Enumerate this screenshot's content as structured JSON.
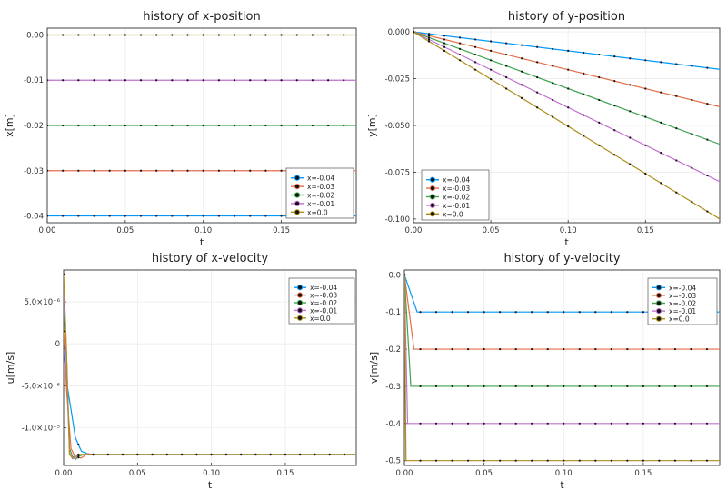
{
  "series_names": [
    "x=-0.04",
    "x=-0.03",
    "x=-0.02",
    "x=-0.01",
    "x=0.0"
  ],
  "series_colors": [
    "#009AFA",
    "#E36F47",
    "#3EA44E",
    "#C371D2",
    "#AC8E18"
  ],
  "chart_data": [
    {
      "type": "line",
      "title": "history of x-position",
      "xlabel": "t",
      "ylabel": "x[m]",
      "xlim": [
        0,
        0.198
      ],
      "ylim": [
        -0.0415,
        0.0015
      ],
      "xticks": [
        {
          "v": 0.0,
          "label": "0.00"
        },
        {
          "v": 0.05,
          "label": "0.05"
        },
        {
          "v": 0.1,
          "label": "0.10"
        },
        {
          "v": 0.15,
          "label": "0.15"
        }
      ],
      "yticks": [
        {
          "v": 0.0,
          "label": "0.00"
        },
        {
          "v": -0.01,
          "label": "-0.01"
        },
        {
          "v": -0.02,
          "label": "-0.02"
        },
        {
          "v": -0.03,
          "label": "-0.03"
        },
        {
          "v": -0.04,
          "label": "-0.04"
        }
      ],
      "grid": true,
      "legend_position": "bottom-right",
      "series": [
        {
          "name": "x=-0.04",
          "x": [
            0,
            0.198
          ],
          "y": [
            -0.04,
            -0.04
          ]
        },
        {
          "name": "x=-0.03",
          "x": [
            0,
            0.198
          ],
          "y": [
            -0.03,
            -0.03
          ]
        },
        {
          "name": "x=-0.02",
          "x": [
            0,
            0.198
          ],
          "y": [
            -0.02,
            -0.02
          ]
        },
        {
          "name": "x=-0.01",
          "x": [
            0,
            0.198
          ],
          "y": [
            -0.01,
            -0.01
          ]
        },
        {
          "name": "x=0.0",
          "x": [
            0,
            0.198
          ],
          "y": [
            0.0,
            0.0
          ]
        }
      ]
    },
    {
      "type": "line",
      "title": "history of y-position",
      "xlabel": "t",
      "ylabel": "y[m]",
      "xlim": [
        0,
        0.198
      ],
      "ylim": [
        -0.102,
        0.002
      ],
      "xticks": [
        {
          "v": 0.0,
          "label": "0.00"
        },
        {
          "v": 0.05,
          "label": "0.05"
        },
        {
          "v": 0.1,
          "label": "0.10"
        },
        {
          "v": 0.15,
          "label": "0.15"
        }
      ],
      "yticks": [
        {
          "v": 0.0,
          "label": "0.000"
        },
        {
          "v": -0.025,
          "label": "-0.025"
        },
        {
          "v": -0.05,
          "label": "-0.050"
        },
        {
          "v": -0.075,
          "label": "-0.075"
        },
        {
          "v": -0.1,
          "label": "-0.100"
        }
      ],
      "grid": true,
      "legend_position": "bottom-left",
      "series": [
        {
          "name": "x=-0.04",
          "x": [
            0,
            0.198
          ],
          "y": [
            0,
            -0.02
          ]
        },
        {
          "name": "x=-0.03",
          "x": [
            0,
            0.198
          ],
          "y": [
            0,
            -0.04
          ]
        },
        {
          "name": "x=-0.02",
          "x": [
            0,
            0.198
          ],
          "y": [
            0,
            -0.06
          ]
        },
        {
          "name": "x=-0.01",
          "x": [
            0,
            0.198
          ],
          "y": [
            0,
            -0.08
          ]
        },
        {
          "name": "x=0.0",
          "x": [
            0,
            0.198
          ],
          "y": [
            0,
            -0.1
          ]
        }
      ]
    },
    {
      "type": "line",
      "title": "history of x-velocity",
      "xlabel": "t",
      "ylabel": "u[m/s]",
      "xlim": [
        0,
        0.198
      ],
      "ylim": [
        -1.45e-05,
        8.8e-06
      ],
      "xticks": [
        {
          "v": 0.0,
          "label": "0.00"
        },
        {
          "v": 0.05,
          "label": "0.05"
        },
        {
          "v": 0.1,
          "label": "0.10"
        },
        {
          "v": 0.15,
          "label": "0.15"
        }
      ],
      "yticks": [
        {
          "v": 5e-06,
          "label": "5.0×10⁻⁶"
        },
        {
          "v": 0,
          "label": "0"
        },
        {
          "v": -5e-06,
          "label": "-5.0×10⁻⁶"
        },
        {
          "v": -1e-05,
          "label": "-1.0×10⁻⁵"
        }
      ],
      "grid": true,
      "legend_position": "top-right",
      "series": [
        {
          "name": "x=-0.04",
          "x": [
            0,
            0.002,
            0.008,
            0.012,
            0.016,
            0.02,
            0.198
          ],
          "y": [
            -5e-07,
            -4.5e-06,
            -1.12e-05,
            -1.28e-05,
            -1.31e-05,
            -1.32e-05,
            -1.32e-05
          ]
        },
        {
          "name": "x=-0.03",
          "x": [
            0,
            0.002,
            0.005,
            0.008,
            0.012,
            0.016,
            0.02,
            0.198
          ],
          "y": [
            1.5e-06,
            -5.5e-06,
            -1.25e-05,
            -1.35e-05,
            -1.36e-05,
            -1.31e-05,
            -1.32e-05,
            -1.32e-05
          ]
        },
        {
          "name": "x=-0.02",
          "x": [
            0,
            0.002,
            0.004,
            0.006,
            0.008,
            0.01,
            0.014,
            0.198
          ],
          "y": [
            4.5e-06,
            -2e-06,
            -1.25e-05,
            -1.34e-05,
            -1.38e-05,
            -1.34e-05,
            -1.32e-05,
            -1.32e-05
          ]
        },
        {
          "name": "x=-0.01",
          "x": [
            0,
            0.002,
            0.004,
            0.006,
            0.008,
            0.01,
            0.198
          ],
          "y": [
            6.8e-06,
            -3e-06,
            -1.3e-05,
            -1.37e-05,
            -1.35e-05,
            -1.32e-05,
            -1.32e-05
          ]
        },
        {
          "name": "x=0.0",
          "x": [
            0,
            0.002,
            0.004,
            0.006,
            0.008,
            0.01,
            0.198
          ],
          "y": [
            8.3e-06,
            -1e-06,
            -1.32e-05,
            -1.36e-05,
            -1.33e-05,
            -1.32e-05,
            -1.32e-05
          ]
        }
      ]
    },
    {
      "type": "line",
      "title": "history of y-velocity",
      "xlabel": "t",
      "ylabel": "v[m/s]",
      "xlim": [
        0,
        0.198
      ],
      "ylim": [
        -0.513,
        0.013
      ],
      "xticks": [
        {
          "v": 0.0,
          "label": "0.00"
        },
        {
          "v": 0.05,
          "label": "0.05"
        },
        {
          "v": 0.1,
          "label": "0.10"
        },
        {
          "v": 0.15,
          "label": "0.15"
        }
      ],
      "yticks": [
        {
          "v": 0.0,
          "label": "0.0"
        },
        {
          "v": -0.1,
          "label": "-0.1"
        },
        {
          "v": -0.2,
          "label": "-0.2"
        },
        {
          "v": -0.3,
          "label": "-0.3"
        },
        {
          "v": -0.4,
          "label": "-0.4"
        },
        {
          "v": -0.5,
          "label": "-0.5"
        }
      ],
      "grid": true,
      "legend_position": "top-right",
      "series": [
        {
          "name": "x=-0.04",
          "x": [
            0,
            0.008,
            0.198
          ],
          "y": [
            0,
            -0.1,
            -0.1
          ]
        },
        {
          "name": "x=-0.03",
          "x": [
            0,
            0.006,
            0.198
          ],
          "y": [
            0,
            -0.2,
            -0.2
          ]
        },
        {
          "name": "x=-0.02",
          "x": [
            0,
            0.004,
            0.198
          ],
          "y": [
            0,
            -0.3,
            -0.3
          ]
        },
        {
          "name": "x=-0.01",
          "x": [
            0,
            0.002,
            0.198
          ],
          "y": [
            0,
            -0.4,
            -0.4
          ]
        },
        {
          "name": "x=0.0",
          "x": [
            0,
            0.001,
            0.198
          ],
          "y": [
            0,
            -0.5,
            -0.5
          ]
        }
      ]
    }
  ]
}
